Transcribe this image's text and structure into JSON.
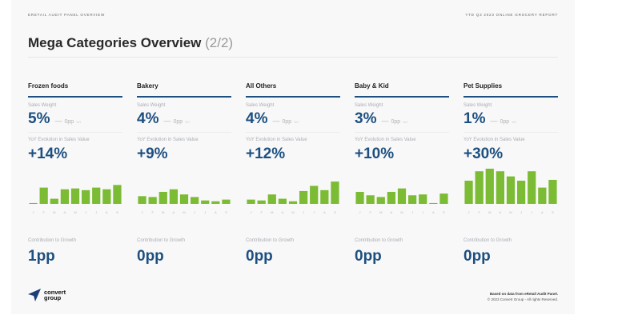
{
  "header": {
    "top_left": "ERETAIL AUDIT PANEL OVERVIEW",
    "top_right": "YTD Q3 2023 ONLINE GROCERY REPORT",
    "title": "Mega Categories Overview",
    "page_indicator": "(2/2)"
  },
  "labels": {
    "sales_weight": "Sales Weight",
    "yoy_evolution": "YoY Evolution in Sales Value",
    "contribution": "Contribution to Growth",
    "dash": "—",
    "yoy_tag": "YoY"
  },
  "colors": {
    "accent": "#1d4f80",
    "bar": "#7cbb34"
  },
  "months": [
    "J",
    "F",
    "M",
    "A",
    "M",
    "J",
    "J",
    "A",
    "S"
  ],
  "categories": [
    {
      "name": "Frozen foods",
      "sales_weight": "5%",
      "weight_change": "0pp",
      "yoy_evolution": "+14%",
      "contribution": "1pp",
      "monthly": [
        1,
        19,
        6,
        17,
        18,
        16,
        19,
        17,
        22
      ]
    },
    {
      "name": "Bakery",
      "sales_weight": "4%",
      "weight_change": "0pp",
      "yoy_evolution": "+9%",
      "contribution": "0pp",
      "monthly": [
        9,
        8,
        14,
        17,
        11,
        8,
        4,
        3,
        5
      ]
    },
    {
      "name": "All Others",
      "sales_weight": "4%",
      "weight_change": "0pp",
      "yoy_evolution": "+12%",
      "contribution": "0pp",
      "monthly": [
        5,
        4,
        11,
        6,
        3,
        15,
        21,
        16,
        26
      ]
    },
    {
      "name": "Baby & Kid",
      "sales_weight": "3%",
      "weight_change": "0pp",
      "yoy_evolution": "+10%",
      "contribution": "0pp",
      "monthly": [
        14,
        10,
        8,
        14,
        18,
        10,
        11,
        1,
        12
      ]
    },
    {
      "name": "Pet Supplies",
      "sales_weight": "1%",
      "weight_change": "0pp",
      "yoy_evolution": "+30%",
      "contribution": "0pp",
      "monthly": [
        27,
        38,
        41,
        38,
        32,
        27,
        38,
        19,
        28
      ]
    }
  ],
  "chart_data": [
    {
      "type": "bar",
      "title": "Frozen foods",
      "categories": [
        "J",
        "F",
        "M",
        "A",
        "M",
        "J",
        "J",
        "A",
        "S"
      ],
      "values": [
        1,
        19,
        6,
        17,
        18,
        16,
        19,
        17,
        22
      ]
    },
    {
      "type": "bar",
      "title": "Bakery",
      "categories": [
        "J",
        "F",
        "M",
        "A",
        "M",
        "J",
        "J",
        "A",
        "S"
      ],
      "values": [
        9,
        8,
        14,
        17,
        11,
        8,
        4,
        3,
        5
      ]
    },
    {
      "type": "bar",
      "title": "All Others",
      "categories": [
        "J",
        "F",
        "M",
        "A",
        "M",
        "J",
        "J",
        "A",
        "S"
      ],
      "values": [
        5,
        4,
        11,
        6,
        3,
        15,
        21,
        16,
        26
      ]
    },
    {
      "type": "bar",
      "title": "Baby & Kid",
      "categories": [
        "J",
        "F",
        "M",
        "A",
        "M",
        "J",
        "J",
        "A",
        "S"
      ],
      "values": [
        14,
        10,
        8,
        14,
        18,
        10,
        11,
        1,
        12
      ]
    },
    {
      "type": "bar",
      "title": "Pet Supplies",
      "categories": [
        "J",
        "F",
        "M",
        "A",
        "M",
        "J",
        "J",
        "A",
        "S"
      ],
      "values": [
        27,
        38,
        41,
        38,
        32,
        27,
        38,
        19,
        28
      ]
    }
  ],
  "footer": {
    "logo_line1": "convert",
    "logo_line2": "group",
    "source": "Based on data from eRetail Audit Panel.",
    "copyright": "© 2023 Convert Group - All rights Reserved."
  }
}
